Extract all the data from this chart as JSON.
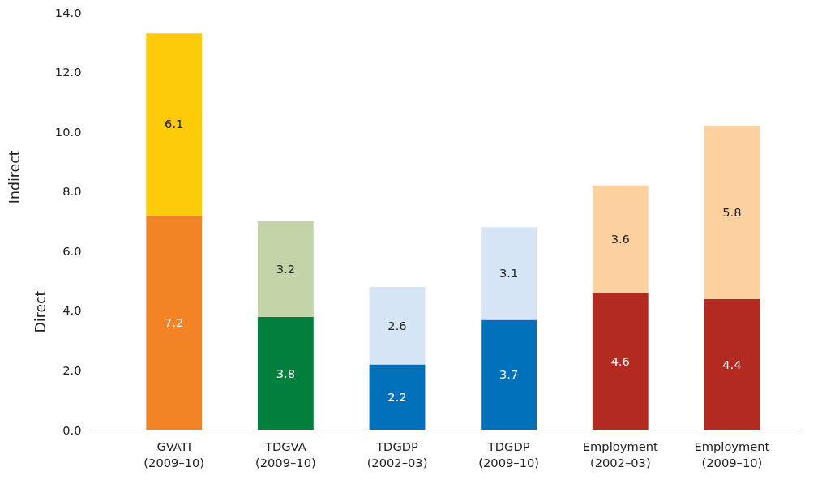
{
  "chart_data": {
    "type": "bar",
    "stacked": true,
    "categories": [
      "GVATI\n(2009–10)",
      "TDGVA\n(2009–10)",
      "TDGDP\n(2002–03)",
      "TDGDP\n(2009–10)",
      "Employment\n(2002–03)",
      "Employment\n(2009–10)"
    ],
    "series": [
      {
        "colors": [
          "#f38425",
          "#007f3d",
          "#0070bb",
          "#0070bb",
          "#b22a20",
          "#b22a20"
        ],
        "values": [
          7.2,
          3.8,
          2.2,
          3.7,
          4.6,
          4.4
        ]
      },
      {
        "colors": [
          "#fecb0a",
          "#c3d4a9",
          "#d5e5f5",
          "#d5e5f5",
          "#fdd19f",
          "#fdd19f"
        ],
        "values": [
          6.1,
          3.2,
          2.6,
          3.1,
          3.6,
          5.8
        ]
      }
    ],
    "ylim": [
      0,
      14
    ],
    "yticks": [
      {
        "value": 0,
        "label": "0.0"
      },
      {
        "value": 2,
        "label": "2.0"
      },
      {
        "value": 4,
        "label": "4.0"
      },
      {
        "value": 6,
        "label": "6.0"
      },
      {
        "value": 8,
        "label": "8.0"
      },
      {
        "value": 10,
        "label": "10.0"
      },
      {
        "value": 12,
        "label": "12.0"
      },
      {
        "value": 14,
        "label": "14.0"
      }
    ],
    "ylabel": "Direct",
    "annotations": [
      "Indirect"
    ],
    "data_labels": true,
    "grid": false
  }
}
